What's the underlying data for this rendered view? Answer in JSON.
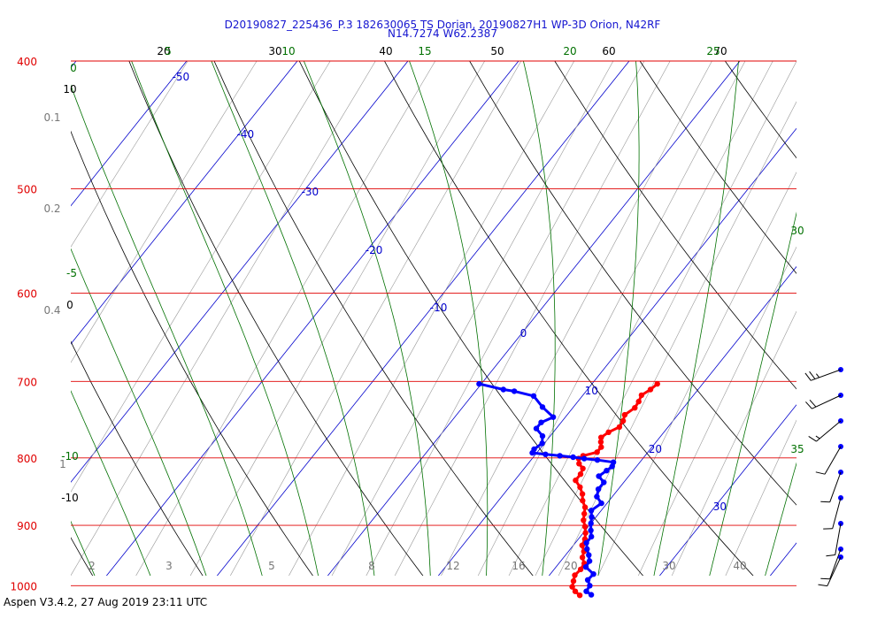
{
  "title": {
    "line1": "D20190827_225436_P.3 182630065 TS Dorian, 20190827H1 WP-3D Orion, N42RF",
    "line2": "N14.7274 W62.2387"
  },
  "footer": "Aspen V3.4.2, 27 Aug 2019  23:11 UTC",
  "colors": {
    "isobar": "#e00000",
    "isotherm": "#0000cc",
    "dry_adiabat": "#000000",
    "moist_adiabat": "#007000",
    "mixing_ratio": "#999999",
    "temperature": "#ff0000",
    "dewpoint": "#0000ff"
  },
  "chart_data": {
    "type": "skew-t",
    "pressure_levels_hPa": [
      "400",
      "500",
      "600",
      "700",
      "800",
      "900",
      "1000"
    ],
    "isotherm_labels_C": [
      "-50",
      "-40",
      "-30",
      "-20",
      "-10",
      "0",
      "10",
      "20",
      "30"
    ],
    "dry_adiabat_labels": [
      "20",
      "30",
      "40",
      "50",
      "60",
      "70",
      "10",
      "0",
      "-10"
    ],
    "moist_adiabat_labels": [
      "5",
      "10",
      "15",
      "20",
      "25",
      "0",
      "-5",
      "-10",
      "30",
      "35"
    ],
    "mixing_ratio_labels": [
      "0.1",
      "0.2",
      "0.4",
      "1",
      "2",
      "3",
      "5",
      "8",
      "12",
      "16",
      "20",
      "30",
      "40"
    ],
    "grid": true,
    "series": [
      {
        "kind": "temperature",
        "points": [
          {
            "p": 703,
            "t": 15.9
          },
          {
            "p": 710,
            "t": 15.7
          },
          {
            "p": 717,
            "t": 15.3
          },
          {
            "p": 725,
            "t": 15.5
          },
          {
            "p": 733,
            "t": 15.6
          },
          {
            "p": 742,
            "t": 15.2
          },
          {
            "p": 750,
            "t": 15.5
          },
          {
            "p": 758,
            "t": 15.6
          },
          {
            "p": 765,
            "t": 15.0
          },
          {
            "p": 772,
            "t": 14.7
          },
          {
            "p": 778,
            "t": 15.0
          },
          {
            "p": 785,
            "t": 15.4
          },
          {
            "p": 792,
            "t": 15.4
          },
          {
            "p": 797,
            "t": 14.4
          },
          {
            "p": 801,
            "t": 14.2
          },
          {
            "p": 808,
            "t": 14.6
          },
          {
            "p": 815,
            "t": 15.3
          },
          {
            "p": 823,
            "t": 15.5
          },
          {
            "p": 832,
            "t": 15.5
          },
          {
            "p": 842,
            "t": 16.4
          },
          {
            "p": 852,
            "t": 17.1
          },
          {
            "p": 862,
            "t": 17.6
          },
          {
            "p": 872,
            "t": 18.3
          },
          {
            "p": 882,
            "t": 18.7
          },
          {
            "p": 892,
            "t": 19.1
          },
          {
            "p": 902,
            "t": 19.7
          },
          {
            "p": 912,
            "t": 20.2
          },
          {
            "p": 922,
            "t": 20.6
          },
          {
            "p": 932,
            "t": 20.8
          },
          {
            "p": 942,
            "t": 21.4
          },
          {
            "p": 952,
            "t": 21.7
          },
          {
            "p": 962,
            "t": 22.3
          },
          {
            "p": 972,
            "t": 22.4
          },
          {
            "p": 982,
            "t": 22.3
          },
          {
            "p": 992,
            "t": 22.6
          },
          {
            "p": 1002,
            "t": 22.9
          },
          {
            "p": 1010,
            "t": 23.5
          },
          {
            "p": 1017,
            "t": 24.2
          }
        ]
      },
      {
        "kind": "dewpoint",
        "points": [
          {
            "p": 703,
            "t": -0.2
          },
          {
            "p": 710,
            "t": 2.4
          },
          {
            "p": 712,
            "t": 3.5
          },
          {
            "p": 718,
            "t": 5.6
          },
          {
            "p": 732,
            "t": 7.2
          },
          {
            "p": 745,
            "t": 8.9
          },
          {
            "p": 752,
            "t": 8.2
          },
          {
            "p": 760,
            "t": 8.2
          },
          {
            "p": 770,
            "t": 9.3
          },
          {
            "p": 780,
            "t": 9.8
          },
          {
            "p": 788,
            "t": 9.5
          },
          {
            "p": 793,
            "t": 9.6
          },
          {
            "p": 795,
            "t": 10.9
          },
          {
            "p": 797,
            "t": 12.3
          },
          {
            "p": 799,
            "t": 13.6
          },
          {
            "p": 801,
            "t": 14.7
          },
          {
            "p": 803,
            "t": 16.0
          },
          {
            "p": 806,
            "t": 17.6
          },
          {
            "p": 812,
            "t": 17.8
          },
          {
            "p": 818,
            "t": 17.6
          },
          {
            "p": 826,
            "t": 17.3
          },
          {
            "p": 835,
            "t": 18.2
          },
          {
            "p": 845,
            "t": 18.2
          },
          {
            "p": 856,
            "t": 18.6
          },
          {
            "p": 866,
            "t": 19.5
          },
          {
            "p": 877,
            "t": 19.1
          },
          {
            "p": 887,
            "t": 19.6
          },
          {
            "p": 897,
            "t": 20.0
          },
          {
            "p": 908,
            "t": 20.5
          },
          {
            "p": 918,
            "t": 21.0
          },
          {
            "p": 928,
            "t": 21.0
          },
          {
            "p": 938,
            "t": 21.5
          },
          {
            "p": 948,
            "t": 22.1
          },
          {
            "p": 958,
            "t": 22.6
          },
          {
            "p": 968,
            "t": 22.7
          },
          {
            "p": 980,
            "t": 23.9
          },
          {
            "p": 990,
            "t": 23.8
          },
          {
            "p": 1000,
            "t": 24.4
          },
          {
            "p": 1010,
            "t": 24.5
          },
          {
            "p": 1016,
            "t": 25.2
          }
        ]
      }
    ],
    "wind_barbs": [
      {
        "speed_kt": 25,
        "dir": 250
      },
      {
        "speed_kt": 20,
        "dir": 245
      },
      {
        "speed_kt": 15,
        "dir": 230
      },
      {
        "speed_kt": 10,
        "dir": 210
      },
      {
        "speed_kt": 10,
        "dir": 200
      },
      {
        "speed_kt": 10,
        "dir": 195
      },
      {
        "speed_kt": 10,
        "dir": 190
      },
      {
        "speed_kt": 10,
        "dir": 200
      },
      {
        "speed_kt": 10,
        "dir": 205
      }
    ]
  }
}
